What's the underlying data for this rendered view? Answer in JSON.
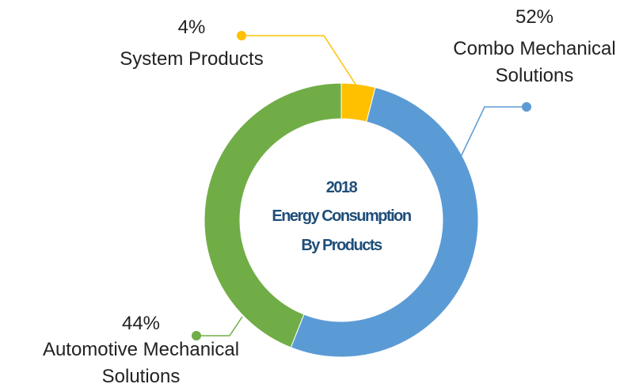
{
  "chart_data": {
    "type": "donut",
    "title": [
      "2018",
      "Energy Consumption",
      "By Products"
    ],
    "categories": [
      "System Products",
      "Combo Mechanical Solutions",
      "Automotive Mechanical Solutions"
    ],
    "values": [
      4,
      52,
      44
    ],
    "value_labels": [
      "4%",
      "52%",
      "44%"
    ],
    "colors": [
      "#ffc000",
      "#5b9bd5",
      "#70ad47"
    ]
  }
}
